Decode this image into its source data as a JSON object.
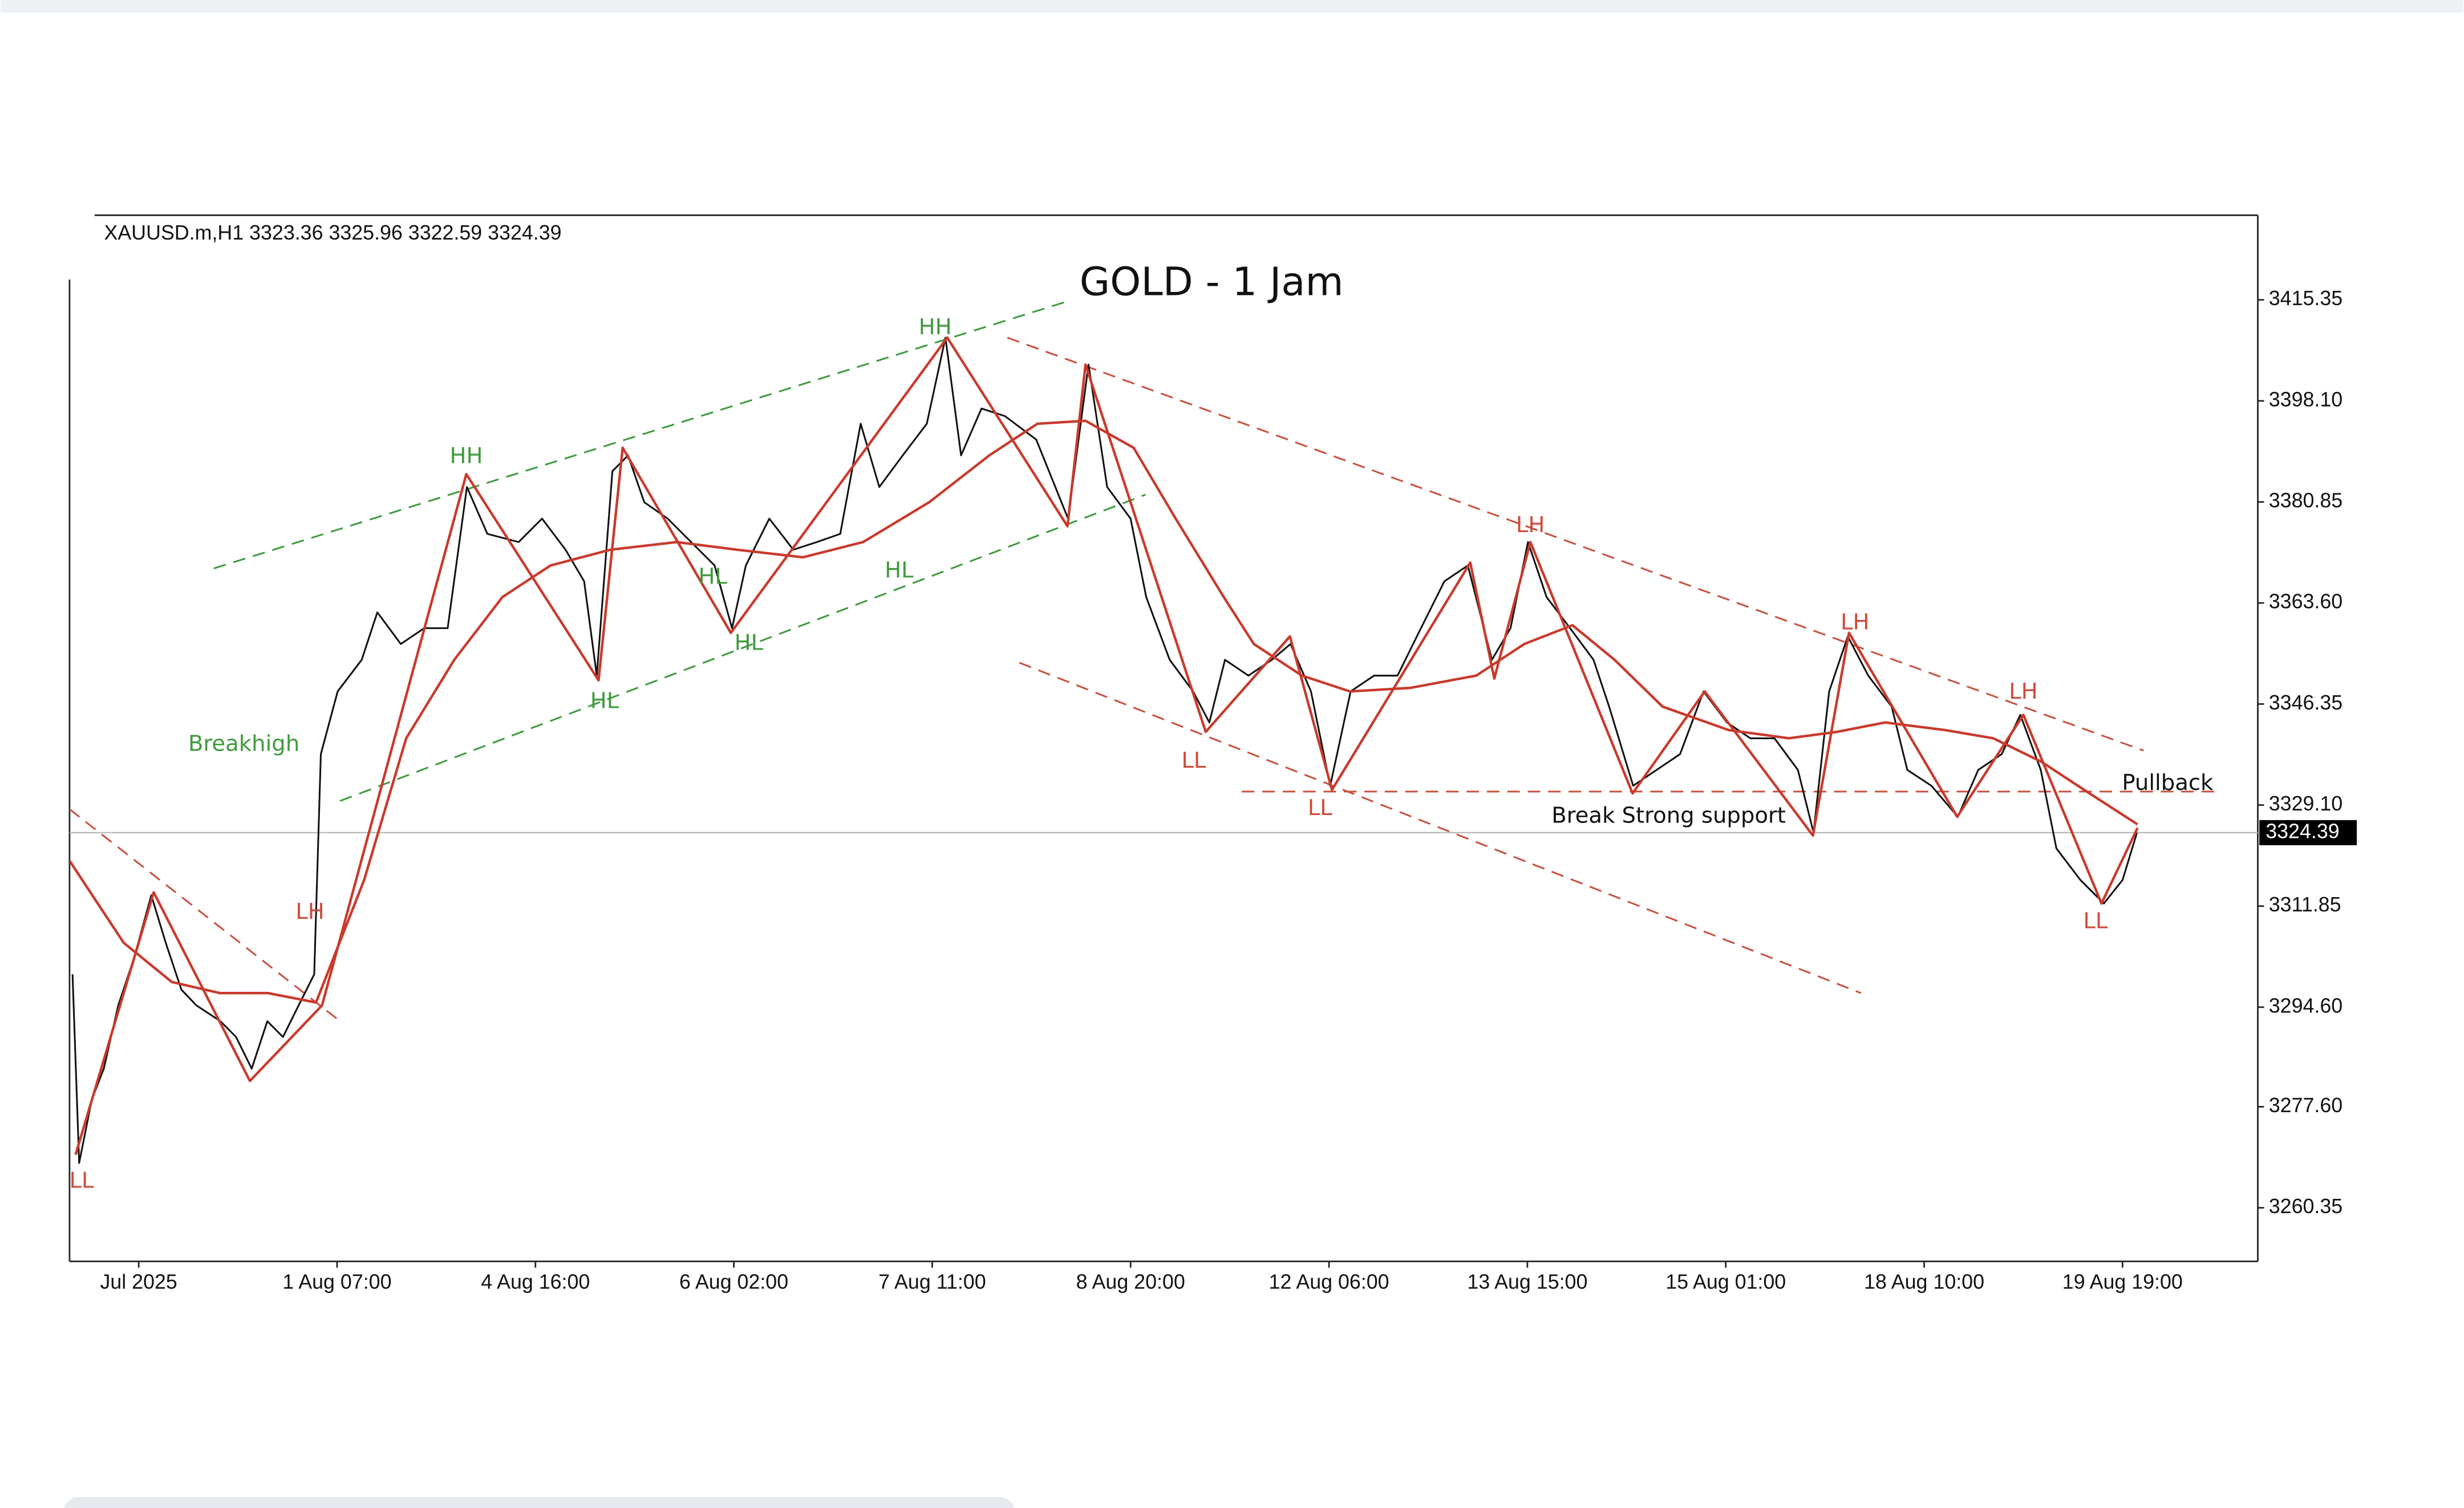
{
  "chart_data": {
    "type": "line",
    "header": "XAUUSD.m,H1  3323.36 3325.96 3322.59 3324.39",
    "title": "GOLD - 1 Jam",
    "xlim": [
      0,
      364
    ],
    "ylim": [
      3251.2,
      3429.8
    ],
    "yticks": [
      3415.35,
      {
        "value": 3398.1,
        "label": "3398.10"
      },
      3380.85,
      {
        "value": 3363.6,
        "label": "3363.60"
      },
      3346.35,
      {
        "value": 3329.1,
        "label": "3329.10"
      },
      3311.85,
      {
        "value": 3294.6,
        "label": "3294.60"
      },
      {
        "value": 3277.6,
        "label": "3277.60"
      },
      3260.35
    ],
    "xticks": [
      {
        "value": 11.5,
        "label": "Jul 2025"
      },
      {
        "value": 44.5,
        "label": "1 Aug 07:00"
      },
      {
        "value": 77.5,
        "label": "4 Aug 16:00"
      },
      {
        "value": 110.5,
        "label": "6 Aug 02:00"
      },
      {
        "value": 143.5,
        "label": "7 Aug 11:00"
      },
      {
        "value": 176.5,
        "label": "8 Aug 20:00"
      },
      {
        "value": 209.5,
        "label": "12 Aug 06:00"
      },
      {
        "value": 242.5,
        "label": "13 Aug 15:00"
      },
      {
        "value": 275.5,
        "label": "15 Aug 01:00"
      },
      {
        "value": 308.5,
        "label": "18 Aug 10:00"
      },
      {
        "value": 341.5,
        "label": "19 Aug 19:00"
      }
    ],
    "last_price": 3324.39,
    "series": [
      {
        "color": "#111111",
        "x": [
          0.5,
          1.6,
          3.7,
          5.7,
          8.1,
          10.7,
          13.6,
          16.0,
          18.6,
          21.1,
          25.1,
          27.7,
          30.3,
          32.9,
          35.5,
          38.1,
          40.7,
          41.8,
          44.6,
          48.6,
          51.2,
          55.1,
          59.0,
          62.9,
          66.1,
          69.5,
          74.7,
          78.6,
          82.5,
          85.6,
          87.7,
          90.3,
          92.9,
          95.6,
          99.5,
          103.4,
          107.3,
          110.2,
          112.5,
          116.4,
          120.4,
          124.3,
          128.2,
          131.6,
          134.7,
          138.6,
          142.6,
          145.7,
          148.3,
          151.7,
          155.6,
          160.8,
          166.1,
          169.5,
          172.6,
          176.5,
          179.1,
          183.0,
          186.9,
          189.6,
          192.2,
          196.1,
          200.0,
          203.1,
          206.5,
          209.7,
          213.1,
          217.0,
          220.9,
          224.8,
          228.7,
          232.6,
          236.6,
          239.7,
          242.6,
          245.7,
          249.6,
          253.5,
          256.1,
          260.1,
          264.0,
          267.9,
          271.8,
          275.7,
          279.6,
          283.6,
          287.5,
          290.1,
          292.7,
          295.8,
          299.2,
          303.1,
          305.7,
          309.7,
          314.1,
          317.5,
          321.4,
          324.5,
          327.9,
          330.5,
          334.5,
          338.4,
          341.5,
          343.9
        ],
        "values": [
          3300.2,
          3268.0,
          3278.8,
          3284.1,
          3294.9,
          3302.9,
          3313.7,
          3305.6,
          3297.6,
          3294.9,
          3292.2,
          3289.5,
          3284.1,
          3292.2,
          3289.5,
          3294.9,
          3300.2,
          3337.8,
          3348.5,
          3353.9,
          3362.0,
          3356.6,
          3359.3,
          3359.3,
          3383.4,
          3375.4,
          3374.0,
          3378.0,
          3372.7,
          3367.3,
          3351.2,
          3386.1,
          3388.8,
          3380.8,
          3378.0,
          3374.0,
          3370.0,
          3359.3,
          3370.0,
          3378.0,
          3372.7,
          3374.0,
          3375.4,
          3394.2,
          3383.4,
          3388.8,
          3394.2,
          3408.9,
          3388.8,
          3396.8,
          3395.5,
          3391.5,
          3378.0,
          3404.3,
          3383.4,
          3378.0,
          3364.6,
          3353.9,
          3348.5,
          3343.2,
          3353.9,
          3351.2,
          3353.9,
          3356.6,
          3348.5,
          3332.4,
          3348.5,
          3351.2,
          3351.2,
          3359.3,
          3367.3,
          3370.0,
          3353.9,
          3359.3,
          3374.0,
          3364.6,
          3359.3,
          3353.9,
          3345.9,
          3332.4,
          3335.1,
          3337.8,
          3348.5,
          3343.2,
          3340.5,
          3340.5,
          3335.1,
          3324.4,
          3348.5,
          3357.9,
          3351.2,
          3345.9,
          3335.1,
          3332.4,
          3327.1,
          3335.1,
          3337.8,
          3344.5,
          3335.1,
          3321.7,
          3316.3,
          3312.3,
          3316.3,
          3324.39
        ]
      },
      {
        "color": "#c93a2c",
        "x": [
          1,
          14,
          30,
          42,
          66,
          88,
          92,
          110,
          146,
          166,
          169,
          189,
          203,
          210,
          233,
          237,
          243,
          260,
          272,
          290,
          296,
          314,
          325,
          338,
          344
        ],
        "values": [
          3269.4,
          3314.2,
          3282.0,
          3294.9,
          3385.6,
          3350.4,
          3390.1,
          3358.5,
          3408.9,
          3376.7,
          3404.3,
          3341.6,
          3357.9,
          3331.7,
          3370.5,
          3350.7,
          3374.0,
          3331.1,
          3348.5,
          3323.9,
          3358.5,
          3327.1,
          3344.5,
          3312.3,
          3325.2
        ]
      },
      {
        "color": "#c93a2c",
        "x": [
          0,
          9,
          17,
          25,
          33,
          41,
          49,
          56,
          64,
          72,
          80,
          90,
          101,
          111,
          122,
          132,
          143,
          153,
          161,
          169,
          177,
          184,
          192,
          197,
          205,
          213,
          223,
          234,
          242,
          250,
          257,
          265,
          276,
          286,
          294,
          302,
          312,
          320,
          328,
          336,
          344
        ],
        "values": [
          3319.6,
          3305.6,
          3298.9,
          3297.0,
          3297.0,
          3295.4,
          3316.3,
          3340.5,
          3353.9,
          3364.6,
          3370.0,
          3372.7,
          3374.0,
          3372.7,
          3371.4,
          3374.0,
          3380.8,
          3388.8,
          3394.2,
          3394.7,
          3390.1,
          3378.0,
          3364.6,
          3356.6,
          3351.2,
          3348.5,
          3349.1,
          3351.2,
          3356.6,
          3359.8,
          3353.9,
          3345.9,
          3341.9,
          3340.5,
          3341.6,
          3343.2,
          3341.9,
          3340.5,
          3336.5,
          3331.1,
          3325.8
        ]
      }
    ],
    "trendlines": [
      {
        "color": "#3f9a3f",
        "x": [
          24,
          166
        ],
        "y": [
          3369.5,
          3415.1
        ]
      },
      {
        "color": "#3f9a3f",
        "x": [
          45,
          179
        ],
        "y": [
          3329.8,
          3382.1
        ]
      },
      {
        "color": "#c9503f",
        "x": [
          156,
          345
        ],
        "y": [
          3408.9,
          3338.4
        ]
      },
      {
        "color": "#c9503f",
        "x": [
          158,
          298
        ],
        "y": [
          3353.4,
          3297.0
        ]
      },
      {
        "color": "#c9503f",
        "x": [
          0,
          45
        ],
        "y": [
          3328.4,
          3292.2
        ]
      },
      {
        "color": "#c9503f",
        "x": [
          195,
          357
        ],
        "y": [
          3331.4,
          3331.4
        ]
      }
    ],
    "annotations": [
      {
        "text": "HH",
        "x": 66,
        "y": 3388.5,
        "color": "#3f9a3f"
      },
      {
        "text": "HH",
        "x": 144,
        "y": 3410.5,
        "color": "#3f9a3f"
      },
      {
        "text": "HL",
        "x": 89,
        "y": 3346.7,
        "color": "#3f9a3f"
      },
      {
        "text": "HL",
        "x": 107,
        "y": 3367.9,
        "color": "#3f9a3f"
      },
      {
        "text": "HL",
        "x": 113,
        "y": 3356.6,
        "color": "#3f9a3f"
      },
      {
        "text": "HL",
        "x": 138,
        "y": 3369.0,
        "color": "#3f9a3f"
      },
      {
        "text": "Breakhigh",
        "x": 29,
        "y": 3339.4,
        "color": "#3f9a3f"
      },
      {
        "text": "LH",
        "x": 40,
        "y": 3310.7,
        "color": "#d04a3a"
      },
      {
        "text": "LL",
        "x": 2,
        "y": 3264.8,
        "color": "#d04a3a"
      },
      {
        "text": "LL",
        "x": 187,
        "y": 3336.5,
        "color": "#d04a3a"
      },
      {
        "text": "LL",
        "x": 208,
        "y": 3328.4,
        "color": "#d04a3a"
      },
      {
        "text": "LH",
        "x": 243,
        "y": 3376.7,
        "color": "#d04a3a"
      },
      {
        "text": "LH",
        "x": 297,
        "y": 3360.1,
        "color": "#d04a3a"
      },
      {
        "text": "LH",
        "x": 325,
        "y": 3348.3,
        "color": "#d04a3a"
      },
      {
        "text": "LL",
        "x": 337,
        "y": 3309.1,
        "color": "#d04a3a"
      },
      {
        "text": "Break Strong support",
        "x": 266,
        "y": 3327.1,
        "color": "#111111"
      },
      {
        "text": "Pullback",
        "x": 349,
        "y": 3332.7,
        "color": "#111111"
      }
    ]
  }
}
